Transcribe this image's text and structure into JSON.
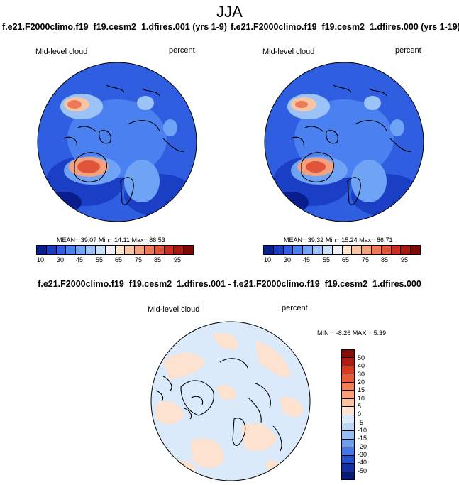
{
  "page": {
    "title": "JJA"
  },
  "panels": [
    {
      "case": "f.e21.F2000climo.f19_f19.cesm2_1.dfires.001 (yrs 1-9)",
      "variable": "Mid-level cloud",
      "units": "percent",
      "stats": {
        "mean_label": "MEAN=",
        "mean": "39.07",
        "min_label": "Min=",
        "min": "14.11",
        "max_label": "Max=",
        "max": "88.53"
      }
    },
    {
      "case": "f.e21.F2000climo.f19_f19.cesm2_1.dfires.000 (yrs 1-19)",
      "variable": "Mid-level cloud",
      "units": "percent",
      "stats": {
        "mean_label": "MEAN=",
        "mean": "39.32",
        "min_label": "Min=",
        "min": "15.24",
        "max_label": "Max=",
        "max": "86.71"
      }
    }
  ],
  "colorbar_top": {
    "tick_labels": [
      "10",
      "30",
      "45",
      "55",
      "65",
      "75",
      "85",
      "95"
    ],
    "colors": [
      "#0a1d8c",
      "#1a3fc4",
      "#2f5fe0",
      "#4a80ef",
      "#6fa3f5",
      "#9cc3f7",
      "#c7def7",
      "#eef1f5",
      "#fbe2cf",
      "#f8c4a4",
      "#f3a17e",
      "#ec7a58",
      "#e0543a",
      "#c92c20",
      "#a8160f",
      "#7d0a06"
    ]
  },
  "difference": {
    "title": "f.e21.F2000climo.f19_f19.cesm2_1.dfires.001 - f.e21.F2000climo.f19_f19.cesm2_1.dfires.000",
    "variable": "Mid-level cloud",
    "units": "percent",
    "stats": {
      "min_label": "MIN =",
      "min": "-8.26",
      "max_label": "MAX =",
      "max": "5.39"
    },
    "colorbar": {
      "tick_labels": [
        "50",
        "40",
        "30",
        "20",
        "15",
        "10",
        "5",
        "0",
        "-5",
        "-10",
        "-15",
        "-20",
        "-30",
        "-40",
        "-50"
      ],
      "colors": [
        "#8b0a05",
        "#b51a10",
        "#d83a1f",
        "#ec5a35",
        "#f47d52",
        "#f7a07a",
        "#f9c2a3",
        "#fde3cf",
        "#dbeafa",
        "#bcd6f7",
        "#97bdf3",
        "#6e9eee",
        "#4677e4",
        "#2450cc",
        "#11309f",
        "#0a1a7a"
      ]
    }
  },
  "colors": {
    "ocean_blue": "#3766e6",
    "land_blue": "#5b8cf0",
    "high_red": "#e4583d",
    "diff_peach": "#fde3cf",
    "diff_lightblue": "#dbeafa"
  }
}
